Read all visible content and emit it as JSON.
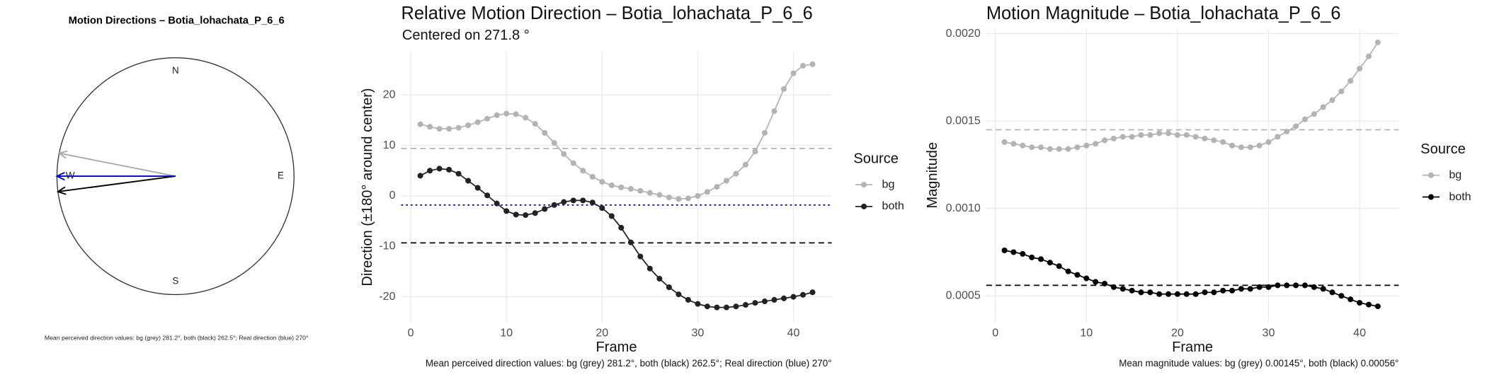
{
  "chart_data": [
    {
      "type": "compass",
      "title": "Motion Directions – Botia_lohachata_P_6_6",
      "directions": [
        "N",
        "E",
        "S",
        "W"
      ],
      "arrows": [
        {
          "value": 281.2,
          "color": "#aaaaaa"
        },
        {
          "value": 262.5,
          "color": "#000000"
        },
        {
          "value": 270,
          "color": "#0000cc"
        }
      ],
      "caption": "Mean perceived direction values: bg (grey) 281.2°, both (black) 262.5°; Real direction (blue) 270°"
    },
    {
      "type": "line",
      "title": "Relative Motion Direction – Botia_lohachata_P_6_6",
      "subtitle": "Centered on  271.8 °",
      "xlabel": "Frame",
      "ylabel": "Direction (±180° around center)",
      "legend_title": "Source",
      "legend": "right",
      "grid": true,
      "x": [
        1,
        2,
        3,
        4,
        5,
        6,
        7,
        8,
        9,
        10,
        11,
        12,
        13,
        14,
        15,
        16,
        17,
        18,
        19,
        20,
        21,
        22,
        23,
        24,
        25,
        26,
        27,
        28,
        29,
        30,
        31,
        32,
        33,
        34,
        35,
        36,
        37,
        38,
        39,
        40,
        41,
        42
      ],
      "series": [
        {
          "name": "bg",
          "color": "#b3b3b3",
          "values": [
            14.2,
            13.7,
            13.3,
            13.3,
            13.5,
            14,
            14.6,
            15.3,
            16,
            16.3,
            16.2,
            15.5,
            14.3,
            12.5,
            10.5,
            8.3,
            6.5,
            5,
            3.8,
            2.8,
            2.1,
            1.7,
            1.4,
            1,
            0.6,
            0.2,
            -0.3,
            -0.6,
            -0.5,
            0,
            0.8,
            1.8,
            3,
            4.4,
            6.2,
            8.8,
            12.5,
            16.8,
            21.2,
            24.3,
            25.8,
            26.1
          ]
        },
        {
          "name": "both",
          "color": "#222222",
          "values": [
            4,
            5,
            5.4,
            5.2,
            4.4,
            3,
            1.6,
            0.1,
            -1.5,
            -3,
            -3.7,
            -3.8,
            -3.4,
            -2.6,
            -1.8,
            -1.2,
            -0.9,
            -0.9,
            -1.3,
            -2.4,
            -4,
            -6.3,
            -9.2,
            -12,
            -14.4,
            -16.4,
            -18.1,
            -19.5,
            -20.6,
            -21.4,
            -21.9,
            -22.1,
            -22.1,
            -21.9,
            -21.6,
            -21.2,
            -20.9,
            -20.6,
            -20.3,
            -20,
            -19.6,
            -19.1
          ]
        }
      ],
      "hlines": [
        {
          "value": 9.4,
          "color": "#b3b3b3",
          "dash": "dashed"
        },
        {
          "value": -9.3,
          "color": "#000000",
          "dash": "dashed"
        },
        {
          "value": -1.8,
          "color": "#0000cc",
          "dash": "dotted"
        }
      ],
      "xlim": [
        -1,
        44
      ],
      "xticks": [
        0,
        10,
        20,
        30,
        40
      ],
      "ylim": [
        -25,
        28.5
      ],
      "yticks": [
        -20,
        -10,
        0,
        10,
        20
      ],
      "caption": "Mean perceived direction values: bg (grey) 281.2°, both (black) 262.5°; Real direction (blue) 270°"
    },
    {
      "type": "line",
      "title": "Motion Magnitude – Botia_lohachata_P_6_6",
      "xlabel": "Frame",
      "ylabel": "Magnitude",
      "legend_title": "Source",
      "legend": "right",
      "grid": true,
      "x": [
        1,
        2,
        3,
        4,
        5,
        6,
        7,
        8,
        9,
        10,
        11,
        12,
        13,
        14,
        15,
        16,
        17,
        18,
        19,
        20,
        21,
        22,
        23,
        24,
        25,
        26,
        27,
        28,
        29,
        30,
        31,
        32,
        33,
        34,
        35,
        36,
        37,
        38,
        39,
        40,
        41,
        42
      ],
      "series": [
        {
          "name": "bg",
          "color": "#b3b3b3",
          "values": [
            0.00138,
            0.00137,
            0.00136,
            0.00135,
            0.00135,
            0.00134,
            0.00134,
            0.00134,
            0.00135,
            0.00136,
            0.00137,
            0.00139,
            0.0014,
            0.00141,
            0.00141,
            0.00142,
            0.00142,
            0.00143,
            0.00143,
            0.00142,
            0.00142,
            0.00141,
            0.0014,
            0.00139,
            0.00138,
            0.00136,
            0.00135,
            0.00135,
            0.00136,
            0.00138,
            0.00141,
            0.00144,
            0.00147,
            0.00151,
            0.00154,
            0.00158,
            0.00162,
            0.00167,
            0.00173,
            0.0018,
            0.00187,
            0.00195
          ]
        },
        {
          "name": "both",
          "color": "#000000",
          "values": [
            0.00076,
            0.00075,
            0.00074,
            0.00072,
            0.00071,
            0.00069,
            0.00067,
            0.00064,
            0.00062,
            0.0006,
            0.00058,
            0.00057,
            0.00055,
            0.00054,
            0.00053,
            0.00052,
            0.00052,
            0.00051,
            0.00051,
            0.00051,
            0.00051,
            0.00051,
            0.00052,
            0.00052,
            0.00053,
            0.00053,
            0.00054,
            0.00054,
            0.00055,
            0.00055,
            0.00056,
            0.00056,
            0.00056,
            0.00056,
            0.00055,
            0.00054,
            0.00052,
            0.0005,
            0.00048,
            0.00046,
            0.00045,
            0.00044
          ]
        }
      ],
      "hlines": [
        {
          "value": 0.00145,
          "color": "#b3b3b3",
          "dash": "dashed"
        },
        {
          "value": 0.00056,
          "color": "#000000",
          "dash": "dashed"
        }
      ],
      "xlim": [
        -1,
        44.3
      ],
      "xticks": [
        0,
        10,
        20,
        30,
        40
      ],
      "ylim": [
        0.00035,
        0.00203
      ],
      "yticks": [
        0.0005,
        {
          "value": 0.001,
          "label": "0.0010"
        },
        0.0015,
        {
          "value": 0.002,
          "label": "0.0020"
        }
      ],
      "caption": "Mean magnitude values: bg (grey) 0.00145°, both (black) 0.00056°"
    }
  ]
}
